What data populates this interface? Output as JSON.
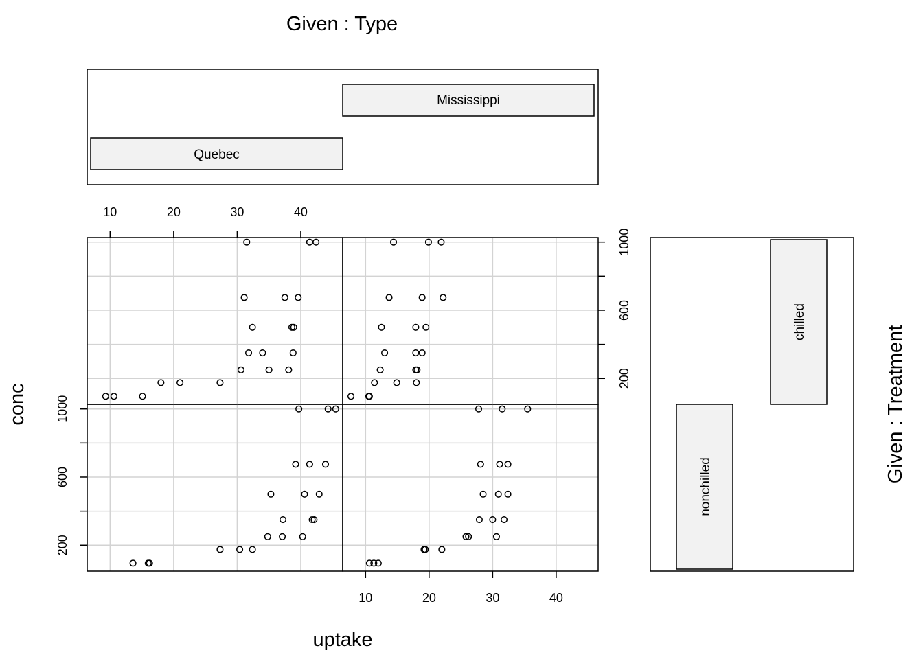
{
  "chart_data": {
    "type": "scatter",
    "title": "",
    "xlabel": "uptake",
    "ylabel": "conc",
    "given_top_label": "Given : Type",
    "given_right_label": "Given : Treatment",
    "type_levels": [
      "Quebec",
      "Mississippi"
    ],
    "treatment_levels": [
      "nonchilled",
      "chilled"
    ],
    "xlim": [
      6.4,
      46.6
    ],
    "ylim": [
      48,
      1027
    ],
    "x_ticks": [
      10,
      20,
      30,
      40
    ],
    "y_ticks": [
      200,
      400,
      600,
      800,
      1000
    ],
    "y_tick_labels": [
      "200",
      "600",
      "1000"
    ],
    "grid": true,
    "panels": [
      {
        "type": "Quebec",
        "treatment": "chilled",
        "x": [
          9.3,
          27.3,
          35.0,
          38.8,
          38.6,
          37.5,
          42.4,
          15.1,
          21.0,
          38.1,
          34.0,
          38.9,
          39.6,
          41.4,
          10.6,
          18.0,
          30.6,
          31.8,
          32.4,
          31.1,
          31.5
        ],
        "y": [
          95,
          175,
          250,
          350,
          500,
          675,
          1000,
          95,
          175,
          250,
          350,
          500,
          675,
          1000,
          95,
          175,
          250,
          350,
          500,
          675,
          1000
        ]
      },
      {
        "type": "Quebec",
        "treatment": "nonchilled",
        "x": [
          16.0,
          30.4,
          34.8,
          37.2,
          35.3,
          39.2,
          39.7,
          13.6,
          27.3,
          37.1,
          41.8,
          40.6,
          41.4,
          44.3,
          16.2,
          32.4,
          40.3,
          42.1,
          42.9,
          43.9,
          45.5
        ],
        "y": [
          95,
          175,
          250,
          350,
          500,
          675,
          1000,
          95,
          175,
          250,
          350,
          500,
          675,
          1000,
          95,
          175,
          250,
          350,
          500,
          675,
          1000
        ]
      },
      {
        "type": "Mississippi",
        "treatment": "chilled",
        "x": [
          7.7,
          11.4,
          12.3,
          13.0,
          12.5,
          13.7,
          14.4,
          10.5,
          14.9,
          18.1,
          18.9,
          19.5,
          22.2,
          21.9,
          10.6,
          18.0,
          17.9,
          17.9,
          17.9,
          18.9,
          19.9
        ],
        "y": [
          95,
          175,
          250,
          350,
          500,
          675,
          1000,
          95,
          175,
          250,
          350,
          500,
          675,
          1000,
          95,
          175,
          250,
          350,
          500,
          675,
          1000
        ]
      },
      {
        "type": "Mississippi",
        "treatment": "nonchilled",
        "x": [
          10.6,
          19.2,
          26.2,
          30.0,
          30.9,
          32.4,
          35.5,
          12.0,
          22.0,
          30.6,
          31.8,
          32.4,
          31.1,
          31.5,
          11.3,
          19.4,
          25.8,
          27.9,
          28.5,
          28.1,
          27.8
        ],
        "y": [
          95,
          175,
          250,
          350,
          500,
          675,
          1000,
          95,
          175,
          250,
          350,
          500,
          675,
          1000,
          95,
          175,
          250,
          350,
          500,
          675,
          1000
        ]
      }
    ]
  }
}
